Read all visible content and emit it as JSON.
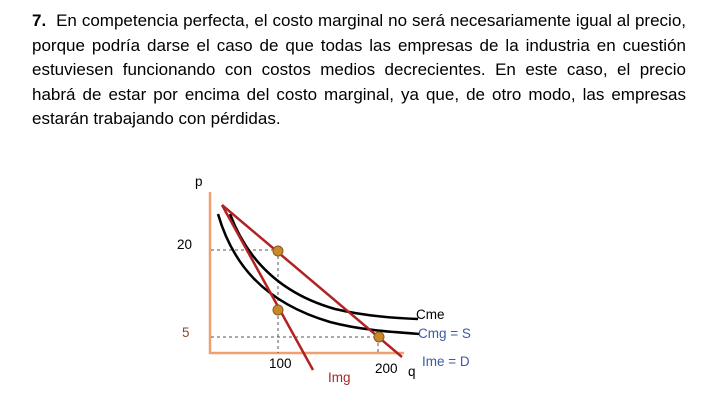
{
  "text": {
    "number": "7.",
    "body": "En competencia perfecta, el costo marginal no será necesariamente igual al precio, porque podría darse el caso de que todas las empresas de la industria en cuestión estuviesen funcionando con costos medios decrecientes.  En este caso, el precio habrá de estar por encima del costo marginal, ya que, de otro modo, las empresas estarán trabajando con pérdidas."
  },
  "graph": {
    "y_axis_label": "p",
    "x_axis_label": "q",
    "y_ticks": [
      "20",
      "5"
    ],
    "x_ticks": [
      "100",
      "200"
    ],
    "curves": {
      "cme": "Cme",
      "cmg": "Cmg = S",
      "ime": "Ime = D",
      "img": "Img"
    },
    "colors": {
      "axis": "#f0a070",
      "black_curve": "#000000",
      "red_line": "#b22222",
      "point": "#c8892a",
      "dashed": "#555555"
    }
  }
}
